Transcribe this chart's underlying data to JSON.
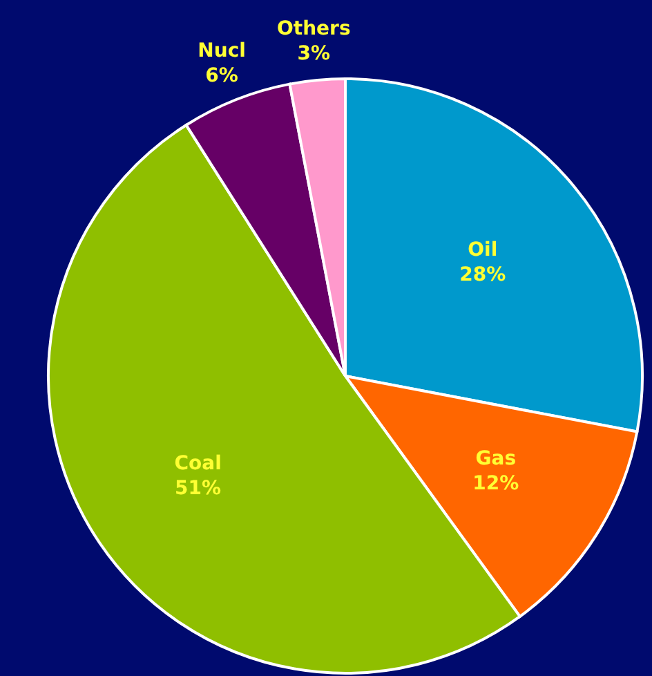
{
  "chart_data": {
    "type": "pie",
    "categories": [
      "Oil",
      "Gas",
      "Coal",
      "Nucl",
      "Others"
    ],
    "values": [
      28,
      12,
      51,
      6,
      3
    ],
    "value_labels": [
      "28%",
      "12%",
      "51%",
      "6%",
      "3%"
    ],
    "colors": [
      "#0099cc",
      "#ff6600",
      "#8fbf00",
      "#660066",
      "#ff99cc"
    ]
  }
}
